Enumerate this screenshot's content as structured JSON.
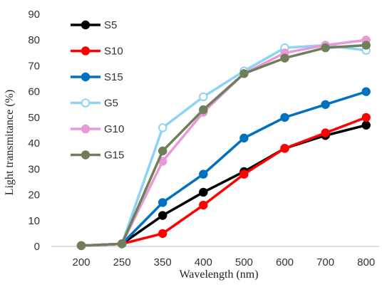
{
  "chart_data": {
    "type": "line",
    "categories": [
      "200",
      "250",
      "350",
      "400",
      "500",
      "600",
      "700",
      "800"
    ],
    "xlabel": "Wavelength (nm)",
    "ylabel": "Light transmitance (%)",
    "ylim": [
      0,
      90
    ],
    "yticks": [
      "0",
      "10",
      "20",
      "30",
      "40",
      "50",
      "60",
      "70",
      "80",
      "90"
    ],
    "grid": false,
    "legend_position": "top-left",
    "series": [
      {
        "name": "S5",
        "color": "#000000",
        "fill": "#000000",
        "values": [
          0.3,
          1.0,
          12,
          21,
          29,
          38,
          43,
          47
        ]
      },
      {
        "name": "S10",
        "color": "#ff0000",
        "fill": "#ff0000",
        "values": [
          0.3,
          1.0,
          5,
          16,
          28,
          38,
          44,
          50
        ]
      },
      {
        "name": "S15",
        "color": "#0070c0",
        "fill": "#0070c0",
        "values": [
          0.3,
          1.0,
          17,
          28,
          42,
          50,
          55,
          60
        ]
      },
      {
        "name": "G5",
        "color": "#8fd3f4",
        "fill": "#ffffff",
        "values": [
          0.3,
          1.0,
          46,
          58,
          68,
          77,
          78,
          76
        ]
      },
      {
        "name": "G10",
        "color": "#e89ad8",
        "fill": "#e89ad8",
        "values": [
          0.3,
          1.0,
          33,
          52,
          67,
          75,
          78,
          80
        ]
      },
      {
        "name": "G15",
        "color": "#6e7f5a",
        "fill": "#6e7f5a",
        "values": [
          0.3,
          1.0,
          37,
          53,
          67,
          73,
          77,
          78
        ]
      }
    ]
  }
}
